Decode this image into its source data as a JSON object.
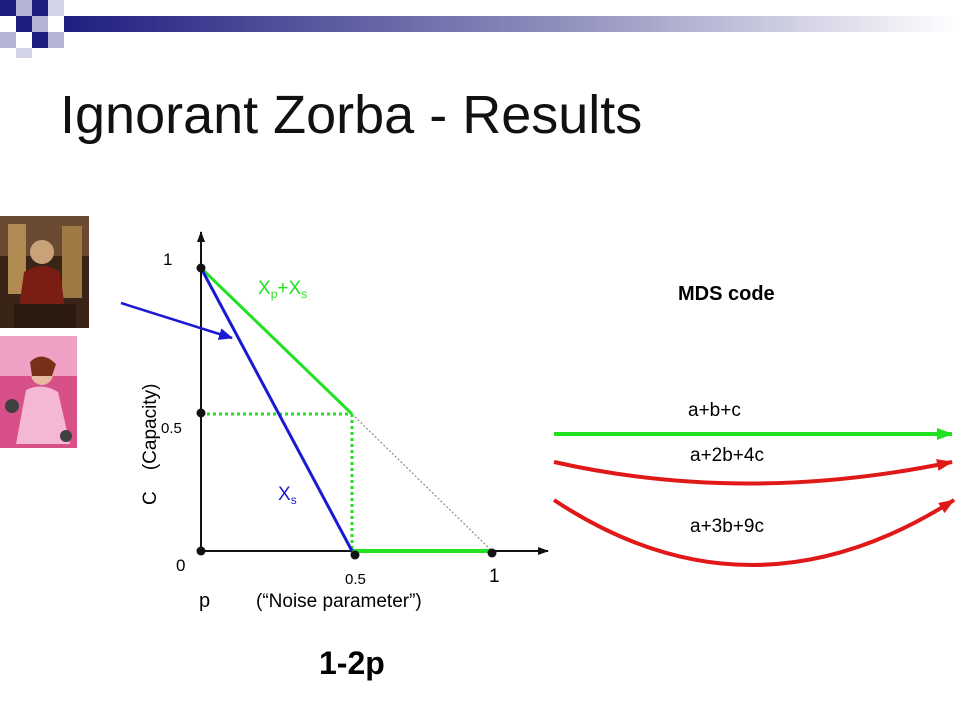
{
  "slide": {
    "title": "Ignorant Zorba - Results",
    "formula": "1-2p"
  },
  "plot": {
    "y_tick_1": "1",
    "y_tick_half": "0.5",
    "origin": "0",
    "x_tick_half": "0.5",
    "x_tick_1": "1",
    "y_axis_label": "C    (Capacity)",
    "x_axis_symbol": "p",
    "x_axis_note": "(“Noise parameter”)",
    "upper_curve_main": "X",
    "upper_curve_sub1": "p",
    "upper_curve_plus": "+X",
    "upper_curve_sub2": "s",
    "lower_curve_main": "X",
    "lower_curve_sub": "s",
    "colors": {
      "upper": "#22e022",
      "lower": "#1a1ad4",
      "axis": "#111111"
    }
  },
  "mds": {
    "heading": "MDS code",
    "codes": [
      "a+b+c",
      "a+2b+4c",
      "a+3b+9c"
    ],
    "colors": {
      "first": "#22e022",
      "others": "#e01818"
    }
  },
  "banner": {
    "colors": [
      "#1a1a7a",
      "#d8d8ea"
    ]
  }
}
